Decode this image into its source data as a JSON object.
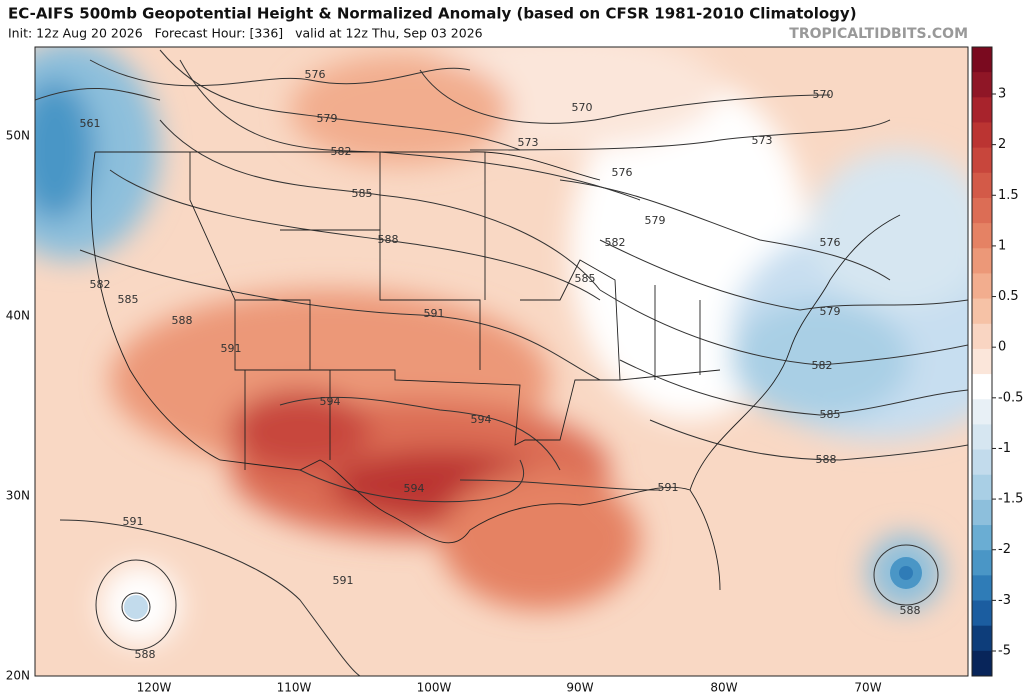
{
  "header": {
    "title": "EC-AIFS 500mb Geopotential Height & Normalized Anomaly (based on CFSR 1981-2010 Climatology)",
    "subtitle": "Init: 12z Aug 20 2026   Forecast Hour: [336]   valid at 12z Thu, Sep 03 2026",
    "watermark": "TROPICALTIDBITS.COM"
  },
  "map": {
    "lat_labels": [
      "50N",
      "40N",
      "30N",
      "20N"
    ],
    "lon_labels": [
      "120W",
      "110W",
      "100W",
      "90W",
      "80W",
      "70W"
    ],
    "contour_labels": [
      "561",
      "576",
      "579",
      "582",
      "585",
      "588",
      "591",
      "594",
      "570",
      "573",
      "576",
      "579",
      "582",
      "585",
      "570",
      "573",
      "576",
      "579",
      "582",
      "585",
      "588",
      "582",
      "585",
      "588",
      "591",
      "591",
      "594",
      "594",
      "591",
      "591",
      "588",
      "588"
    ]
  },
  "colorbar": {
    "ticks": [
      3,
      2,
      1.5,
      1,
      0.5,
      0,
      -0.5,
      -1,
      -1.5,
      -2,
      -3,
      -5
    ],
    "colors": [
      "#7a0a1f",
      "#8f1626",
      "#a8232c",
      "#bb3432",
      "#c8463c",
      "#d35a48",
      "#dc6d55",
      "#e58264",
      "#ec9878",
      "#f2ad8e",
      "#f6c2a6",
      "#f9d5c2",
      "#fbe6da",
      "#ffffff",
      "#e8f0f6",
      "#d6e6f1",
      "#c2dbec",
      "#a9cfe5",
      "#8dbfdc",
      "#6aadd3",
      "#4a96c6",
      "#2f7cb7",
      "#1b5da0",
      "#0d3d7a",
      "#08255a"
    ]
  }
}
